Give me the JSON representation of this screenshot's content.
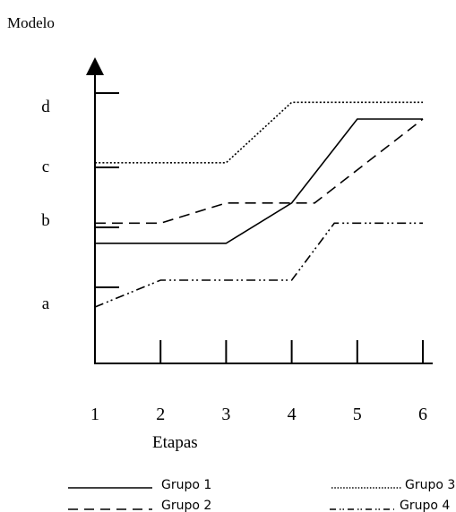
{
  "chart_data": {
    "type": "line",
    "ylabel": "Modelo",
    "xlabel": "Etapas",
    "x_ticks": [
      "1",
      "2",
      "3",
      "4",
      "5",
      "6"
    ],
    "y_ticks": [
      "a",
      "b",
      "c",
      "d"
    ],
    "series": [
      {
        "name": "Grupo 1",
        "style": "solid",
        "color": "#000000",
        "points": [
          [
            1,
            1.55
          ],
          [
            2,
            1.55
          ],
          [
            3,
            1.55
          ],
          [
            4,
            2.15
          ],
          [
            5,
            3.4
          ],
          [
            6,
            3.4
          ]
        ]
      },
      {
        "name": "Grupo 2",
        "style": "dashed",
        "color": "#000000",
        "points": [
          [
            1,
            1.85
          ],
          [
            2,
            1.85
          ],
          [
            3,
            2.15
          ],
          [
            4,
            2.15
          ],
          [
            4.35,
            2.15
          ],
          [
            6,
            3.4
          ]
        ]
      },
      {
        "name": "Grupo 3",
        "style": "dotted",
        "color": "#000000",
        "points": [
          [
            1,
            2.75
          ],
          [
            2,
            2.75
          ],
          [
            3,
            2.75
          ],
          [
            4,
            3.65
          ],
          [
            5,
            3.65
          ],
          [
            6,
            3.65
          ]
        ]
      },
      {
        "name": "Grupo 4",
        "style": "dashdotdot",
        "color": "#000000",
        "points": [
          [
            1,
            0.6
          ],
          [
            2,
            1.0
          ],
          [
            3,
            1.0
          ],
          [
            4,
            1.0
          ],
          [
            4.65,
            1.85
          ],
          [
            6,
            1.85
          ]
        ]
      }
    ]
  }
}
